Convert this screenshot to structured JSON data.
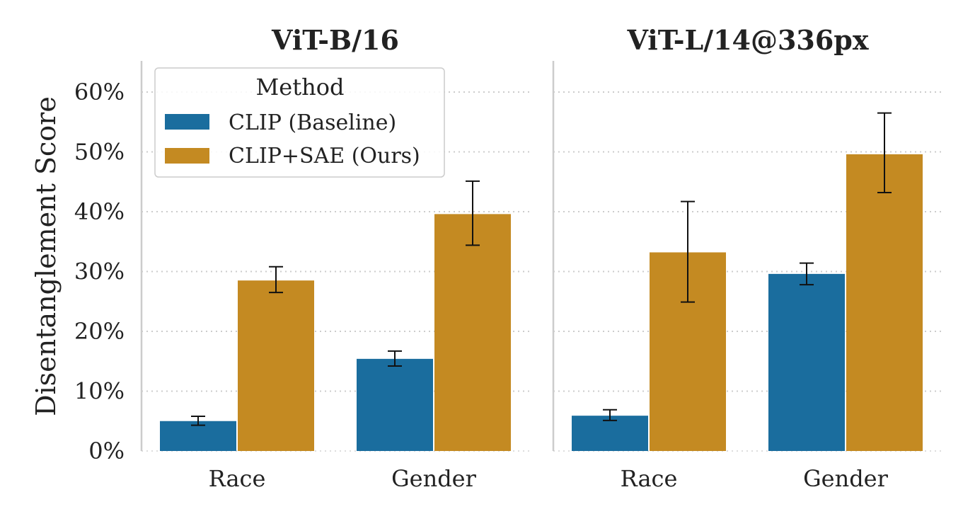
{
  "chart_data": {
    "type": "bar",
    "ylabel": "Disentanglement Score",
    "ylim": [
      0,
      65
    ],
    "yticks": [
      "0%",
      "10%",
      "20%",
      "30%",
      "40%",
      "50%",
      "60%"
    ],
    "grid": "horizontal dotted",
    "legend": {
      "title": "Method",
      "placement": "top-left",
      "entries": [
        {
          "label": "CLIP (Baseline)",
          "color": "#1a6d9e"
        },
        {
          "label": "CLIP+SAE (Ours)",
          "color": "#c48a22"
        }
      ]
    },
    "panels": [
      {
        "title": "ViT-B/16",
        "categories": [
          "Race",
          "Gender"
        ],
        "series": [
          {
            "name": "CLIP (Baseline)",
            "color": "#1a6d9e",
            "values": [
              5.0,
              15.4
            ],
            "err_low": [
              4.3,
              14.2
            ],
            "err_high": [
              5.8,
              16.7
            ]
          },
          {
            "name": "CLIP+SAE (Ours)",
            "color": "#c48a22",
            "values": [
              28.5,
              39.6
            ],
            "err_low": [
              26.5,
              34.4
            ],
            "err_high": [
              30.8,
              45.1
            ]
          }
        ]
      },
      {
        "title": "ViT-L/14@336px",
        "categories": [
          "Race",
          "Gender"
        ],
        "series": [
          {
            "name": "CLIP (Baseline)",
            "color": "#1a6d9e",
            "values": [
              5.9,
              29.6
            ],
            "err_low": [
              5.1,
              27.8
            ],
            "err_high": [
              6.9,
              31.4
            ]
          },
          {
            "name": "CLIP+SAE (Ours)",
            "color": "#c48a22",
            "values": [
              33.2,
              49.6
            ],
            "err_low": [
              24.9,
              43.2
            ],
            "err_high": [
              41.7,
              56.5
            ]
          }
        ]
      }
    ]
  }
}
